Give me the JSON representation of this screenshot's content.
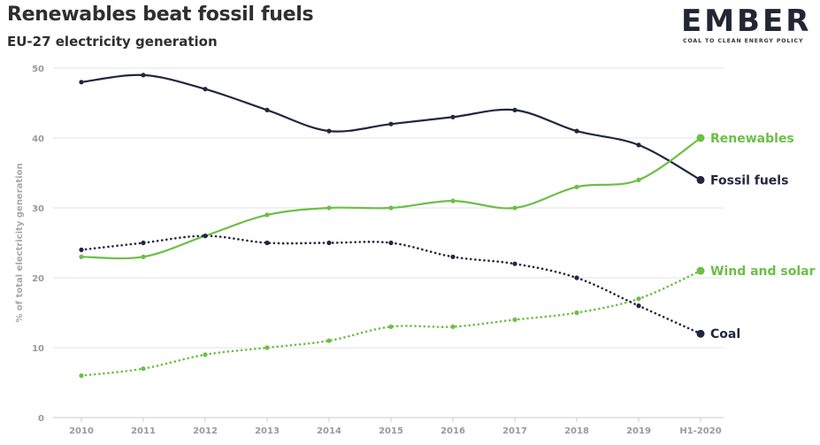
{
  "header": {
    "title": "Renewables beat fossil fuels",
    "subtitle": "EU-27 electricity generation"
  },
  "logo": {
    "word": "EMBER",
    "tagline": "COAL TO CLEAN ENERGY POLICY"
  },
  "colors": {
    "fossil": "#232640",
    "renewables": "#6cbf45",
    "grid": "#e3e3e3",
    "axis": "#cccccc"
  },
  "chart_data": {
    "type": "line",
    "title": "Renewables beat fossil fuels",
    "subtitle": "EU-27 electricity generation",
    "xlabel": "",
    "ylabel": "% of total electricity generation",
    "ylim": [
      0,
      50
    ],
    "yticks": [
      0,
      10,
      20,
      30,
      40,
      50
    ],
    "grid": true,
    "legend": "direct labels at line ends (right)",
    "categories": [
      "2010",
      "2011",
      "2012",
      "2013",
      "2014",
      "2015",
      "2016",
      "2017",
      "2018",
      "2019",
      "H1-2020"
    ],
    "series": [
      {
        "name": "Fossil fuels",
        "color": "#232640",
        "style": "solid",
        "values": [
          48,
          49,
          47,
          44,
          41,
          42,
          43,
          44,
          41,
          39,
          34
        ]
      },
      {
        "name": "Renewables",
        "color": "#6cbf45",
        "style": "solid",
        "values": [
          23,
          23,
          26,
          29,
          30,
          30,
          31,
          30,
          33,
          34,
          40
        ]
      },
      {
        "name": "Wind and solar",
        "color": "#6cbf45",
        "style": "dotted",
        "values": [
          6,
          7,
          9,
          10,
          11,
          13,
          13,
          14,
          15,
          17,
          21
        ]
      },
      {
        "name": "Coal",
        "color": "#232640",
        "style": "dotted",
        "values": [
          24,
          25,
          26,
          25,
          25,
          25,
          23,
          22,
          20,
          16,
          12
        ]
      }
    ]
  }
}
